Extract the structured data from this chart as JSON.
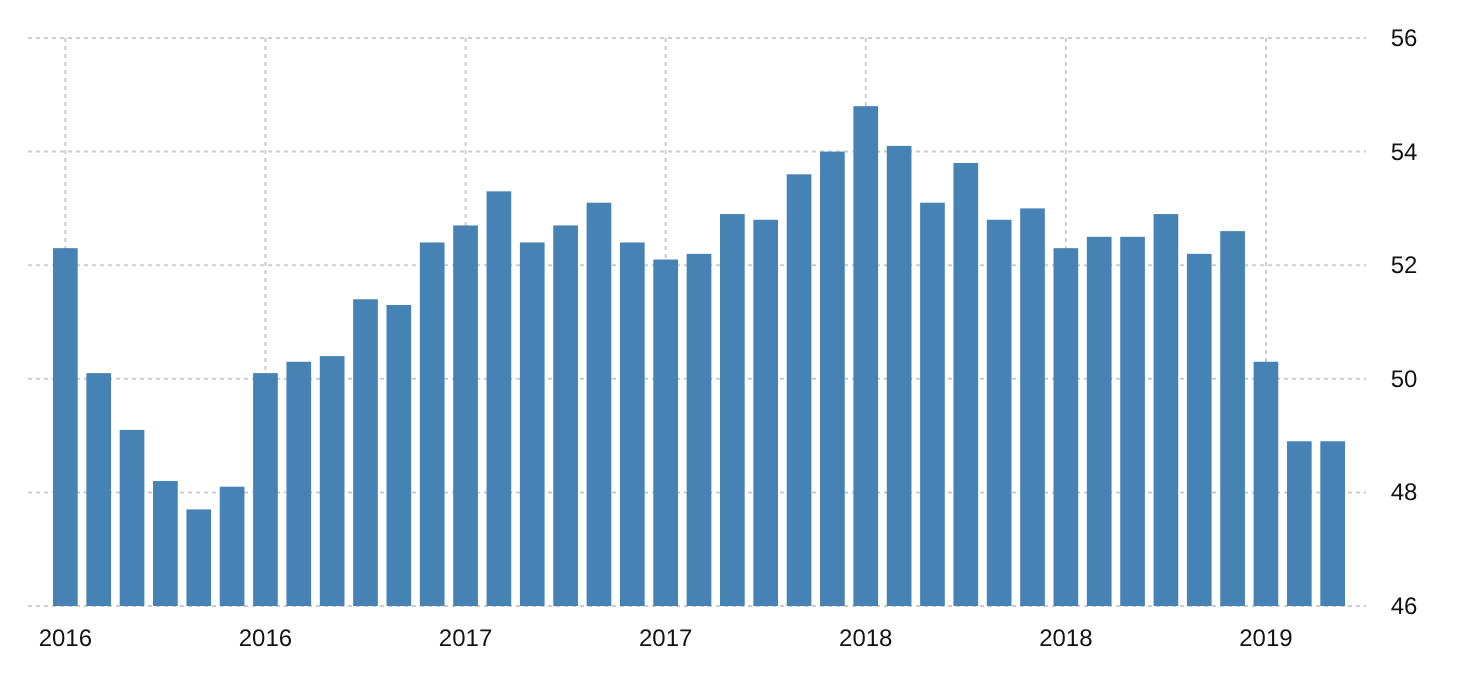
{
  "chart_data": {
    "type": "bar",
    "categories": [
      "2016",
      null,
      null,
      null,
      null,
      null,
      "2016",
      null,
      null,
      null,
      null,
      null,
      "2017",
      null,
      null,
      null,
      null,
      null,
      "2017",
      null,
      null,
      null,
      null,
      null,
      "2018",
      null,
      null,
      null,
      null,
      null,
      "2018",
      null,
      null,
      null,
      null,
      null,
      "2019",
      null,
      null
    ],
    "values": [
      52.3,
      50.1,
      49.1,
      48.2,
      47.7,
      48.1,
      50.1,
      50.3,
      50.4,
      51.4,
      51.3,
      52.4,
      52.7,
      53.3,
      52.4,
      52.7,
      53.1,
      52.4,
      52.1,
      52.2,
      52.9,
      52.8,
      53.6,
      54.0,
      54.8,
      54.1,
      53.1,
      53.8,
      52.8,
      53.0,
      52.3,
      52.5,
      52.5,
      52.9,
      52.2,
      52.6,
      50.3,
      48.9,
      48.9
    ],
    "color": "#4682b4",
    "ylim": [
      46,
      56
    ],
    "yticks": [
      46,
      48,
      50,
      52,
      54,
      56
    ],
    "grid": true
  }
}
